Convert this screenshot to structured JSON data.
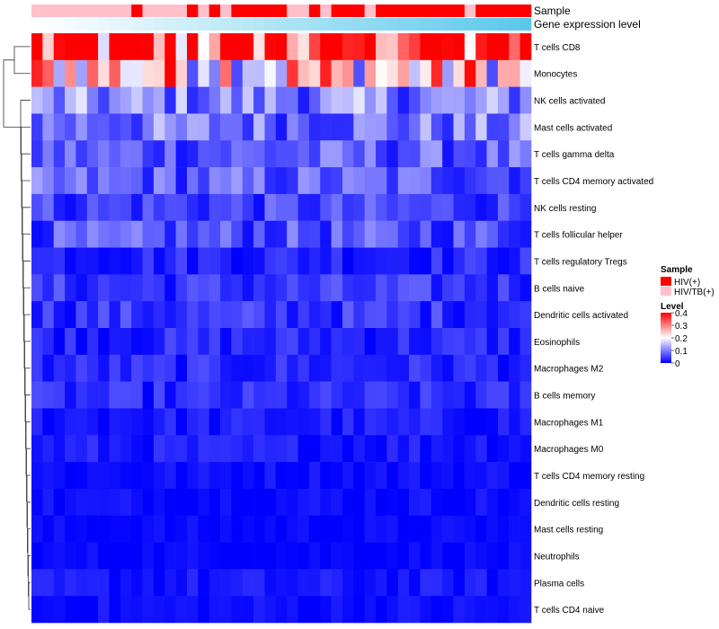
{
  "chart_data": {
    "type": "heatmap",
    "title": "",
    "rows": [
      "T cells CD8",
      "Monocytes",
      "NK cells activated",
      "Mast cells activated",
      "T cells gamma delta",
      "T cells CD4 memory activated",
      "NK cells resting",
      "T cells follicular helper",
      "T cells regulatory  Tregs",
      "B cells naive",
      "Dendritic cells activated",
      "Eosinophils",
      "Macrophages M2",
      "B cells memory",
      "Macrophages M1",
      "Macrophages M0",
      "T cells CD4 memory resting",
      "Dendritic cells resting",
      "Mast cells resting",
      "Neutrophils",
      "Plasma cells",
      "T cells CD4 naive"
    ],
    "row_means": [
      0.33,
      0.22,
      0.1,
      0.09,
      0.07,
      0.07,
      0.05,
      0.06,
      0.03,
      0.04,
      0.04,
      0.03,
      0.03,
      0.03,
      0.02,
      0.02,
      0.01,
      0.01,
      0.005,
      0.005,
      0.015,
      0.01
    ],
    "n_columns": 45,
    "sample_groups": [
      "HIV/TB(+)",
      "HIV/TB(+)",
      "HIV/TB(+)",
      "HIV/TB(+)",
      "HIV/TB(+)",
      "HIV/TB(+)",
      "HIV/TB(+)",
      "HIV/TB(+)",
      "HIV/TB(+)",
      "HIV(+)",
      "HIV/TB(+)",
      "HIV/TB(+)",
      "HIV/TB(+)",
      "HIV/TB(+)",
      "HIV(+)",
      "HIV/TB(+)",
      "HIV(+)",
      "HIV/TB(+)",
      "HIV(+)",
      "HIV(+)",
      "HIV(+)",
      "HIV(+)",
      "HIV(+)",
      "HIV/TB(+)",
      "HIV/TB(+)",
      "HIV(+)",
      "HIV/TB(+)",
      "HIV(+)",
      "HIV(+)",
      "HIV(+)",
      "HIV/TB(+)",
      "HIV(+)",
      "HIV(+)",
      "HIV(+)",
      "HIV(+)",
      "HIV(+)",
      "HIV(+)",
      "HIV(+)",
      "HIV(+)",
      "HIV/TB(+)",
      "HIV(+)",
      "HIV(+)",
      "HIV(+)",
      "HIV(+)",
      "HIV(+)"
    ],
    "tracks": [
      "Sample",
      "Gene expression level"
    ],
    "legend": {
      "sample_title": "Sample",
      "sample_items": [
        {
          "label": "HIV(+)",
          "color": "#ff0000"
        },
        {
          "label": "HIV/TB(+)",
          "color": "#ffc0cb"
        }
      ],
      "level_title": "Level",
      "level_ticks": [
        "0.4",
        "0.3",
        "0.2",
        "0.1",
        "0"
      ],
      "level_range": [
        0,
        0.4
      ],
      "level_colors": [
        "#0000ff",
        "#ffffff",
        "#ff0000"
      ],
      "expression_track_colors": [
        "#ffffff",
        "#7fd8ef",
        "#5bc8ea"
      ]
    },
    "dendrogram": "hierarchical clustering of rows (left)"
  }
}
